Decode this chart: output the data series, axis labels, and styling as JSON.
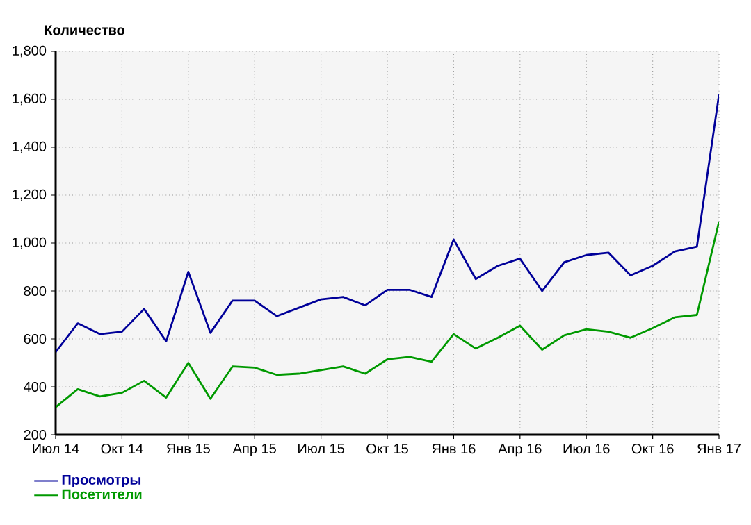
{
  "chart_data": {
    "type": "line",
    "ylabel": "Количество",
    "x": [
      "2014-07",
      "2014-08",
      "2014-09",
      "2014-10",
      "2014-11",
      "2014-12",
      "2015-01",
      "2015-02",
      "2015-03",
      "2015-04",
      "2015-05",
      "2015-06",
      "2015-07",
      "2015-08",
      "2015-09",
      "2015-10",
      "2015-11",
      "2015-12",
      "2016-01",
      "2016-02",
      "2016-03",
      "2016-04",
      "2016-05",
      "2016-06",
      "2016-07",
      "2016-08",
      "2016-09",
      "2016-10",
      "2016-11",
      "2016-12",
      "2017-01"
    ],
    "series": [
      {
        "name": "Просмотры",
        "color": "#000099",
        "values": [
          545,
          665,
          620,
          630,
          725,
          590,
          880,
          625,
          760,
          760,
          695,
          730,
          765,
          775,
          740,
          805,
          805,
          775,
          1015,
          850,
          905,
          935,
          800,
          920,
          950,
          960,
          865,
          905,
          965,
          985,
          1620
        ]
      },
      {
        "name": "Посетители",
        "color": "#009900",
        "values": [
          315,
          390,
          360,
          375,
          425,
          355,
          500,
          350,
          485,
          480,
          450,
          455,
          470,
          485,
          455,
          515,
          525,
          505,
          620,
          560,
          605,
          655,
          555,
          615,
          640,
          630,
          605,
          645,
          690,
          700,
          1090
        ]
      }
    ],
    "xlim": [
      "2014-07",
      "2017-01"
    ],
    "xticks": [
      {
        "value": "2014-07",
        "label": "Июл 14"
      },
      {
        "value": "2014-10",
        "label": "Окт 14"
      },
      {
        "value": "2015-01",
        "label": "Янв 15"
      },
      {
        "value": "2015-04",
        "label": "Апр 15"
      },
      {
        "value": "2015-07",
        "label": "Июл 15"
      },
      {
        "value": "2015-10",
        "label": "Окт 15"
      },
      {
        "value": "2016-01",
        "label": "Янв 16"
      },
      {
        "value": "2016-04",
        "label": "Апр 16"
      },
      {
        "value": "2016-07",
        "label": "Июл 16"
      },
      {
        "value": "2016-10",
        "label": "Окт 16"
      },
      {
        "value": "2017-01",
        "label": "Янв 17"
      }
    ],
    "ylim": [
      200,
      1800
    ],
    "yticks": [
      200,
      400,
      600,
      800,
      {
        "value": 1000,
        "label": "1,000"
      },
      {
        "value": 1200,
        "label": "1,200"
      },
      {
        "value": 1400,
        "label": "1,400"
      },
      {
        "value": 1600,
        "label": "1,600"
      },
      {
        "value": 1800,
        "label": "1,800"
      }
    ],
    "grid": true,
    "legend": "bottom left",
    "marker": "none",
    "line_style": "solid"
  }
}
